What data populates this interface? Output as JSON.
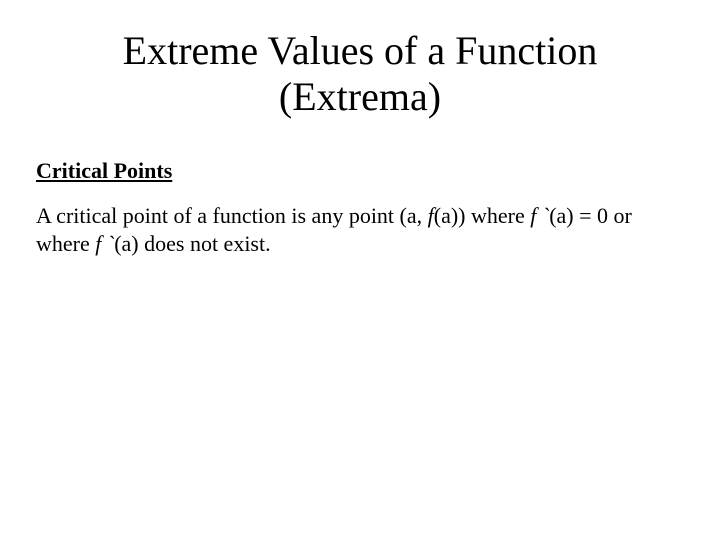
{
  "slide": {
    "title_line1": "Extreme Values of a Function",
    "title_line2": "(Extrema)",
    "heading": "Critical Points",
    "p1_a": "A critical point of a function is any point (a, ",
    "p1_b": "f",
    "p1_c": "(a)) where ",
    "p1_d": "f `",
    "p1_e": "(a) = 0 or where ",
    "p1_f": "f `",
    "p1_g": "(a) does not exist."
  },
  "colors": {
    "text": "#000000",
    "background": "#ffffff"
  },
  "typography": {
    "title_fontsize": 40,
    "heading_fontsize": 22,
    "body_fontsize": 22,
    "font_family": "Times New Roman"
  }
}
